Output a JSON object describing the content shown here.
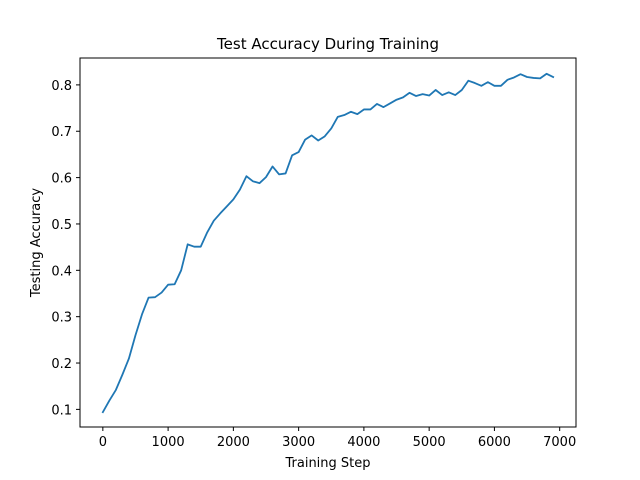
{
  "chart_data": {
    "type": "line",
    "title": "Test Accuracy During Training",
    "xlabel": "Training Step",
    "ylabel": "Testing Accuracy",
    "xlim": [
      -350,
      7250
    ],
    "ylim": [
      0.062,
      0.858
    ],
    "xticks": [
      0,
      1000,
      2000,
      3000,
      4000,
      5000,
      6000,
      7000
    ],
    "yticks": [
      0.1,
      0.2,
      0.3,
      0.4,
      0.5,
      0.6,
      0.7,
      0.8
    ],
    "xtick_labels": [
      "0",
      "1000",
      "2000",
      "3000",
      "4000",
      "5000",
      "6000",
      "7000"
    ],
    "ytick_labels": [
      "0.1",
      "0.2",
      "0.3",
      "0.4",
      "0.5",
      "0.6",
      "0.7",
      "0.8"
    ],
    "grid": false,
    "series": [
      {
        "color": "#1f77b4",
        "x": [
          0,
          100,
          200,
          300,
          400,
          500,
          600,
          700,
          800,
          900,
          1000,
          1100,
          1200,
          1300,
          1400,
          1500,
          1600,
          1700,
          1800,
          1900,
          2000,
          2100,
          2200,
          2300,
          2400,
          2500,
          2600,
          2700,
          2800,
          2900,
          3000,
          3100,
          3200,
          3300,
          3400,
          3500,
          3600,
          3700,
          3800,
          3900,
          4000,
          4100,
          4200,
          4300,
          4400,
          4500,
          4600,
          4700,
          4800,
          4900,
          5000,
          5100,
          5200,
          5300,
          5400,
          5500,
          5600,
          5700,
          5800,
          5900,
          6000,
          6100,
          6200,
          6300,
          6400,
          6500,
          6600,
          6700,
          6800,
          6900
        ],
        "y": [
          0.094,
          0.119,
          0.142,
          0.175,
          0.21,
          0.26,
          0.305,
          0.341,
          0.342,
          0.352,
          0.369,
          0.37,
          0.4,
          0.456,
          0.451,
          0.451,
          0.482,
          0.507,
          0.523,
          0.538,
          0.553,
          0.574,
          0.603,
          0.592,
          0.588,
          0.601,
          0.624,
          0.607,
          0.609,
          0.648,
          0.655,
          0.682,
          0.691,
          0.68,
          0.689,
          0.706,
          0.731,
          0.735,
          0.742,
          0.737,
          0.747,
          0.747,
          0.759,
          0.752,
          0.76,
          0.768,
          0.773,
          0.783,
          0.776,
          0.78,
          0.777,
          0.789,
          0.778,
          0.784,
          0.778,
          0.789,
          0.809,
          0.804,
          0.798,
          0.806,
          0.798,
          0.798,
          0.811,
          0.816,
          0.823,
          0.817,
          0.815,
          0.814,
          0.824,
          0.817
        ]
      }
    ]
  }
}
